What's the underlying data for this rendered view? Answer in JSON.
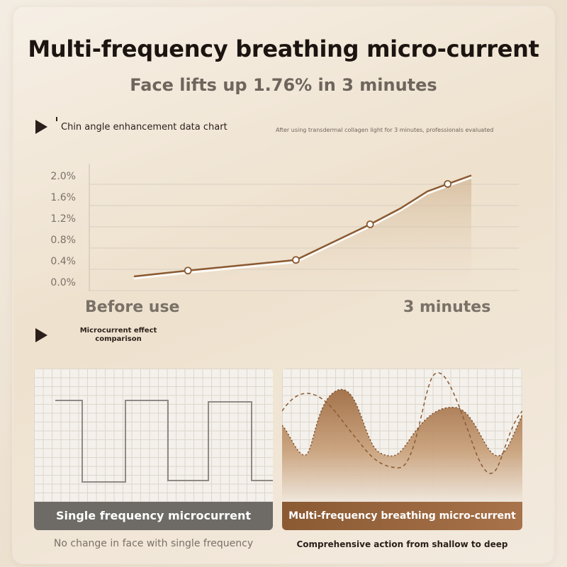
{
  "header": {
    "title": "Multi-frequency breathing micro-current",
    "subtitle": "Face lifts up 1.76% in 3 minutes"
  },
  "section1": {
    "title": "Chin angle enhancement data chart",
    "note": "After using transdermal collagen light for 3 minutes, professionals evaluated",
    "icon": "play-icon"
  },
  "chart_data": {
    "type": "line",
    "title": "Chin angle enhancement data chart",
    "yticks": [
      "2.0%",
      "1.6%",
      "1.2%",
      "0.8%",
      "0.4%",
      "0.0%"
    ],
    "ylim": [
      0,
      2.0
    ],
    "x_start_label": "Before use",
    "x_end_label": "3 minutes",
    "grid": true,
    "series": [
      {
        "x": [
          0,
          0.16,
          0.48,
          0.7,
          0.79,
          0.87,
          0.93,
          1.0
        ],
        "values": [
          0.08,
          0.19,
          0.39,
          1.06,
          1.36,
          1.68,
          1.82,
          1.98
        ],
        "markers": [
          1,
          2,
          3,
          6
        ],
        "color": "#8a5a33"
      }
    ]
  },
  "section2": {
    "title": "Microcurrent effect comparison",
    "icon": "play-icon"
  },
  "panels": {
    "left": {
      "label": "Single frequency microcurrent",
      "caption": "No change in face with single frequency",
      "color": "#8f8a85"
    },
    "right": {
      "label": "Multi-frequency breathing micro-current",
      "caption": "Comprehensive action from shallow to deep",
      "color": "#8a5a33"
    }
  }
}
